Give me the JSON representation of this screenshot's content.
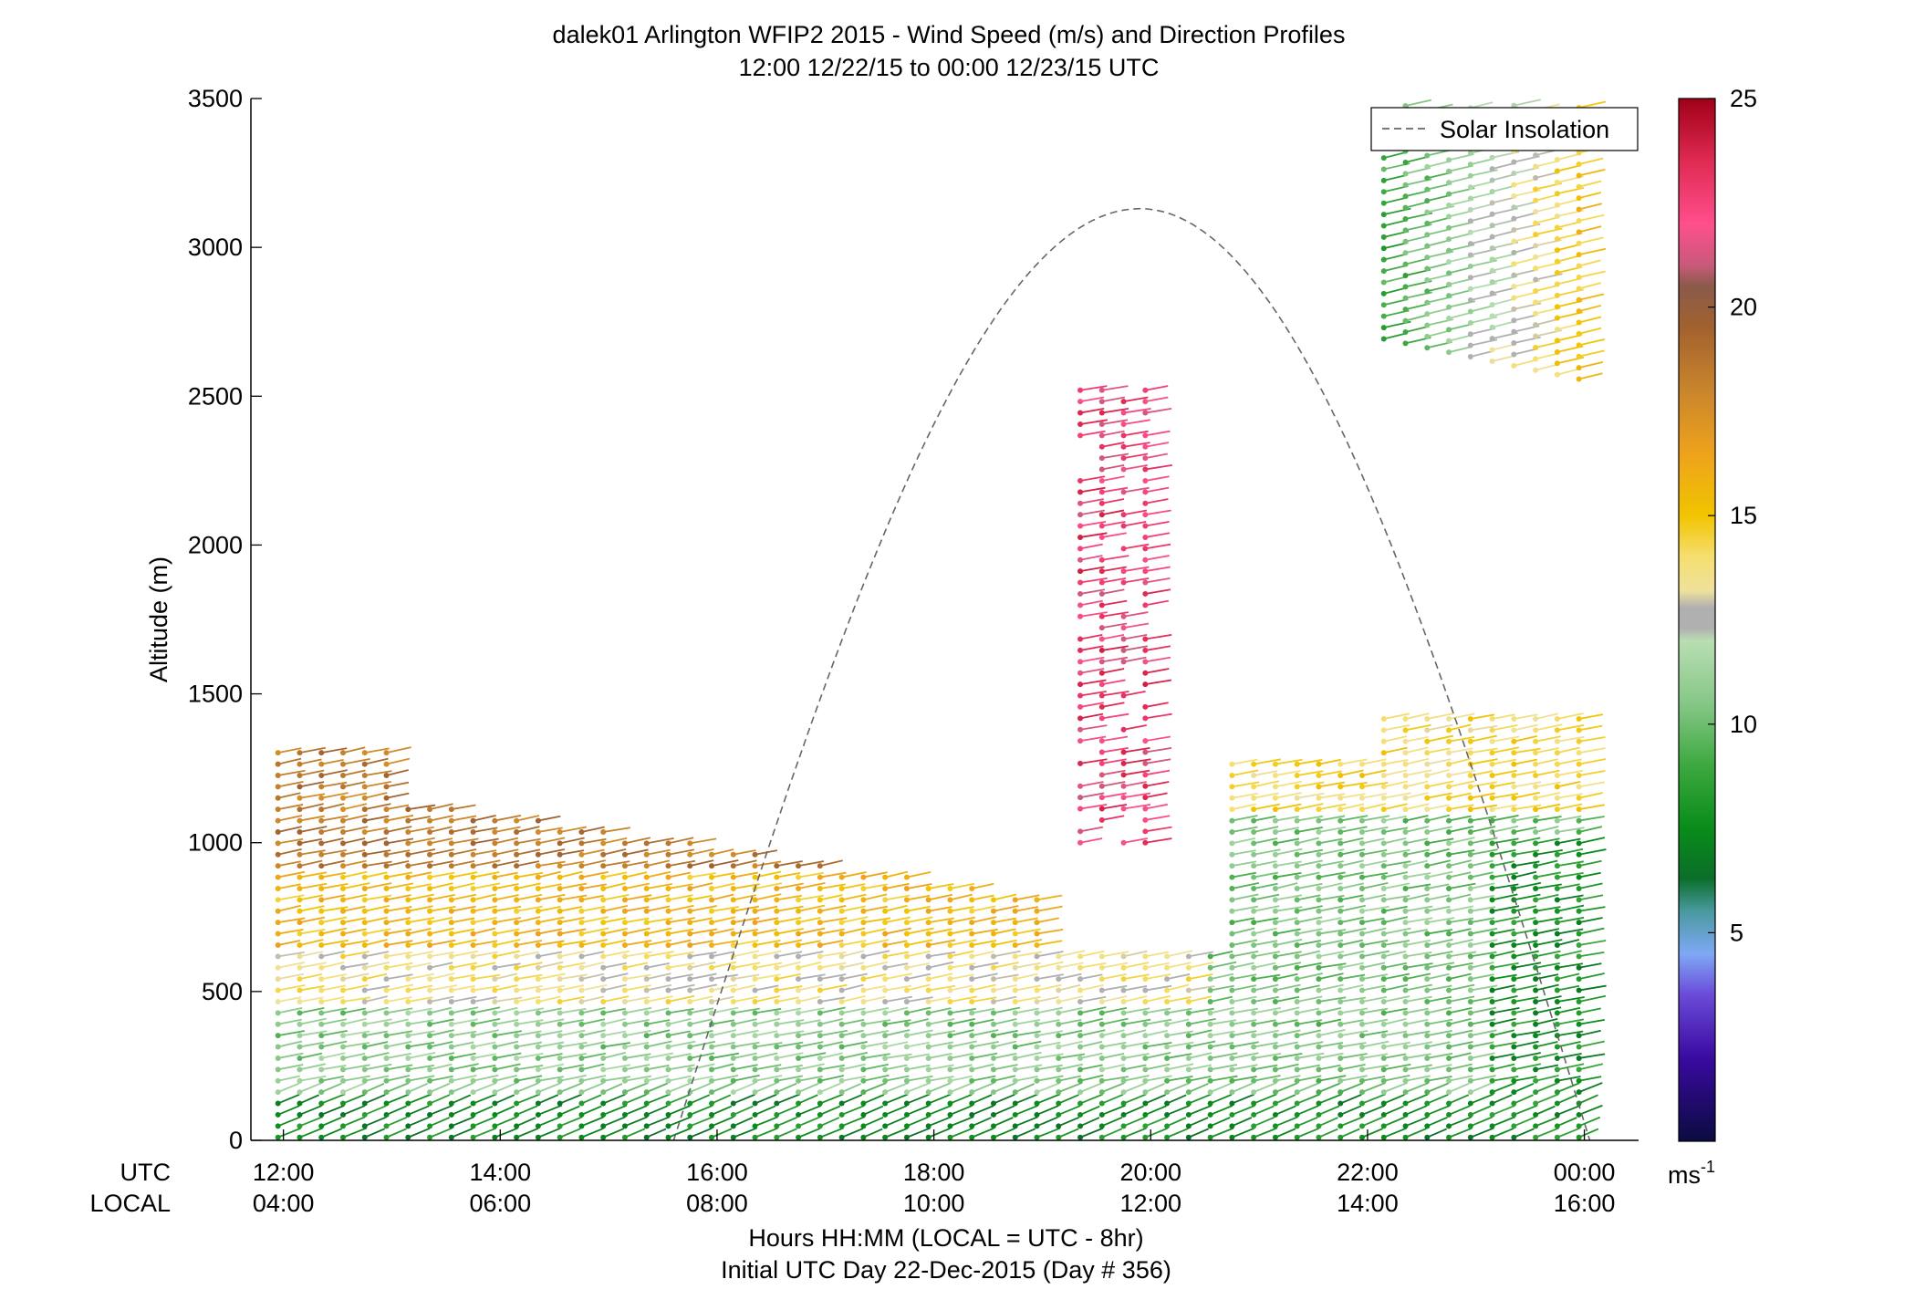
{
  "chart_data": {
    "type": "wind_barb_profile",
    "title": "dalek01 Arlington WFIP2 2015 - Wind Speed (m/s) and Direction Profiles",
    "subtitle": "12:00 12/22/15 to 00:00 12/23/15  UTC",
    "ylabel": "Altitude (m)",
    "xlabel": "Hours HH:MM  (LOCAL = UTC - 8hr)",
    "xlabel2": "Initial UTC Day 22-Dec-2015 (Day # 356)",
    "row_label_utc": "UTC",
    "row_label_local": "LOCAL",
    "ylim": [
      0,
      3500
    ],
    "yticks": [
      0,
      500,
      1000,
      1500,
      2000,
      2500,
      3000,
      3500
    ],
    "xlim_hours": [
      11.7,
      24.5
    ],
    "utc_ticks": [
      "12:00",
      "14:00",
      "16:00",
      "18:00",
      "20:00",
      "22:00",
      "00:00"
    ],
    "local_ticks": [
      "04:00",
      "06:00",
      "08:00",
      "10:00",
      "12:00",
      "14:00",
      "16:00"
    ],
    "tick_hours": [
      12,
      14,
      16,
      18,
      20,
      22,
      24
    ],
    "legend": {
      "label": "Solar Insolation",
      "placement": "top-right"
    },
    "solar_insolation": {
      "rise_hour": 15.6,
      "peak_hour": 19.9,
      "set_hour": 24.05,
      "peak_altitude": 3130
    },
    "colorbar": {
      "unit": "ms",
      "unit_exp": "-1",
      "range": [
        0,
        25
      ],
      "ticks": [
        5,
        10,
        15,
        20,
        25
      ],
      "stops": [
        {
          "v": 0,
          "c": "#0b0b40"
        },
        {
          "v": 2,
          "c": "#3a0aa0"
        },
        {
          "v": 3.5,
          "c": "#6a4ad8"
        },
        {
          "v": 4.5,
          "c": "#7fa8f5"
        },
        {
          "v": 5.5,
          "c": "#4a9aa0"
        },
        {
          "v": 6.3,
          "c": "#0b6e2a"
        },
        {
          "v": 7.5,
          "c": "#098c19"
        },
        {
          "v": 9.0,
          "c": "#3da83f"
        },
        {
          "v": 10.5,
          "c": "#86c787"
        },
        {
          "v": 12.0,
          "c": "#b8deb2"
        },
        {
          "v": 12.3,
          "c": "#b0b0b0"
        },
        {
          "v": 12.8,
          "c": "#b0b0b0"
        },
        {
          "v": 13.2,
          "c": "#efe19c"
        },
        {
          "v": 14.0,
          "c": "#f5df70"
        },
        {
          "v": 15.0,
          "c": "#f1c400"
        },
        {
          "v": 16.5,
          "c": "#eea21c"
        },
        {
          "v": 18.0,
          "c": "#c9852c"
        },
        {
          "v": 19.5,
          "c": "#a2622f"
        },
        {
          "v": 20.5,
          "c": "#8a5a4a"
        },
        {
          "v": 21.0,
          "c": "#c85a7a"
        },
        {
          "v": 22.0,
          "c": "#ff4f8c"
        },
        {
          "v": 23.5,
          "c": "#df2a52"
        },
        {
          "v": 25.0,
          "c": "#a00018"
        }
      ]
    },
    "profiles": {
      "time_start_hour": 11.95,
      "time_end_hour": 24.05,
      "time_step_hour": 0.2,
      "levels_m": {
        "start": 10,
        "step": 38,
        "surface_top": 1320
      },
      "description_layers": [
        {
          "alt_from": 0,
          "alt_to": 150,
          "speed": 7.5,
          "dir_deg": 245
        },
        {
          "alt_from": 150,
          "alt_to": 450,
          "speed": 10.5,
          "dir_deg": 255
        },
        {
          "alt_from": 450,
          "alt_to": 650,
          "speed": 13.5,
          "dir_deg": 265
        },
        {
          "alt_from": 650,
          "alt_to": 900,
          "speed": 15.5,
          "dir_deg": 270
        },
        {
          "alt_from": 900,
          "alt_to": 1320,
          "speed": 18.5,
          "dir_deg": 280
        }
      ],
      "upper_jet": {
        "hour_from": 19.3,
        "hour_to": 20.05,
        "alt_from": 1000,
        "alt_to": 2550,
        "speed": 22.5
      },
      "upper_cloud": {
        "hour_from": 22.05,
        "hour_to": 24.05,
        "alt_from": 2550,
        "alt_to": 3480,
        "speed_left": 8.5,
        "speed_right": 15.5
      }
    }
  }
}
